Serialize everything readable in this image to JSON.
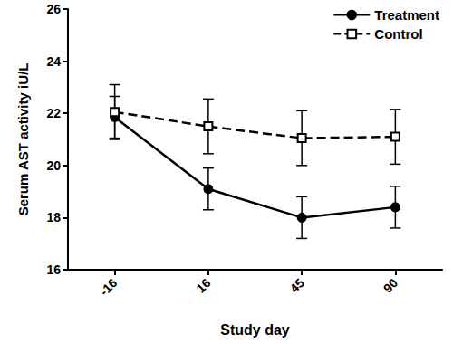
{
  "chart_data": {
    "type": "line",
    "x_label": "Study day",
    "y_label": "Serum AST activity iU/L",
    "categories": [
      "-16",
      "16",
      "45",
      "90"
    ],
    "series": [
      {
        "name": "Treatment",
        "color": "#000000",
        "marker": "circle",
        "line_style": "solid",
        "values": [
          21.85,
          19.1,
          18.0,
          18.4
        ],
        "errors": [
          0.8,
          0.8,
          0.8,
          0.8
        ]
      },
      {
        "name": "Control",
        "color": "#000000",
        "marker": "open_square",
        "line_style": "dashed",
        "values": [
          22.05,
          21.5,
          21.05,
          21.1
        ],
        "errors": [
          1.05,
          1.05,
          1.05,
          1.05
        ]
      }
    ],
    "ylim": [
      16,
      26
    ],
    "yticks": [
      16,
      18,
      20,
      22,
      24,
      26
    ],
    "grid": false,
    "legend": "upper right"
  }
}
